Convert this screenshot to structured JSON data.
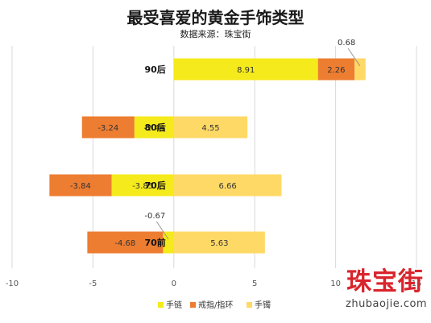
{
  "chart_data": {
    "type": "bar",
    "orientation": "horizontal",
    "stacked": true,
    "title": "最受喜爱的黄金手饰类型",
    "subtitle": "数据来源：珠宝街",
    "categories": [
      "90后",
      "80后",
      "70后",
      "70前"
    ],
    "series": [
      {
        "name": "手链",
        "color": "#f5ea1c",
        "values": [
          8.91,
          -2.44,
          -3.85,
          -0.67
        ]
      },
      {
        "name": "戒指/指环",
        "color": "#ed7d31",
        "values": [
          2.26,
          -3.24,
          -3.84,
          -4.68
        ]
      },
      {
        "name": "手镯",
        "color": "#ffd966",
        "values": [
          0.68,
          4.55,
          6.66,
          5.63
        ]
      }
    ],
    "xlim": [
      -10,
      15
    ],
    "xticks": [
      -10,
      -5,
      0,
      5,
      10,
      15
    ],
    "grid": "vertical",
    "legend": "bottom",
    "watermark": {
      "main": "珠宝街",
      "sub": "zhubaojie.com"
    }
  }
}
